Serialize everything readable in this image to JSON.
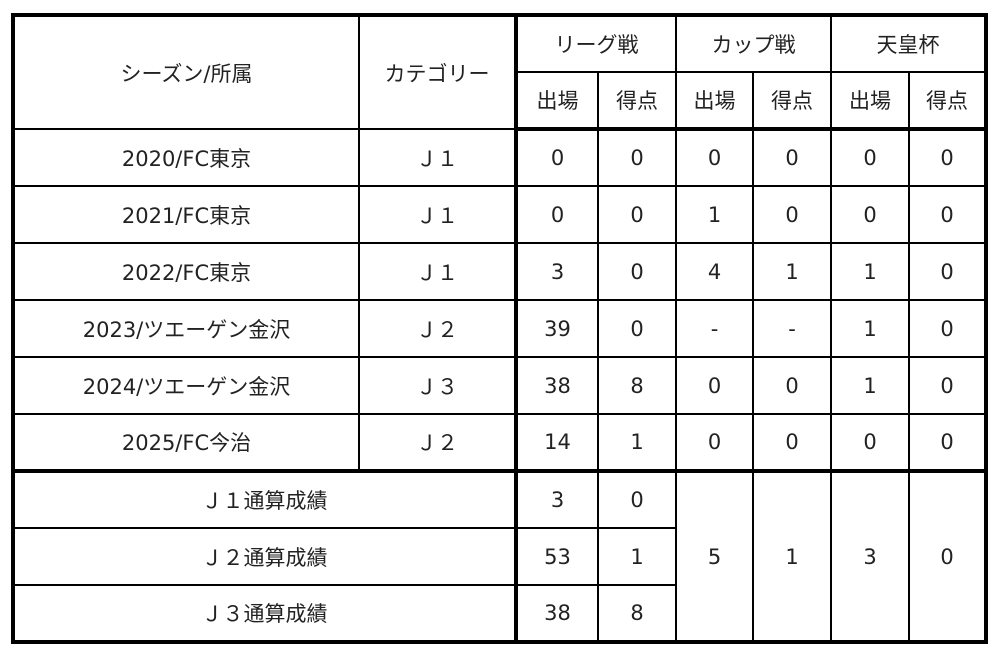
{
  "header": {
    "season": "シーズン/所属",
    "category": "カテゴリー",
    "groups": [
      "リーグ戦",
      "カップ戦",
      "天皇杯"
    ],
    "sub": [
      "出場",
      "得点",
      "出場",
      "得点",
      "出場",
      "得点"
    ]
  },
  "rows": [
    {
      "season": "2020/FC東京",
      "category": "Ｊ１",
      "v": [
        "0",
        "0",
        "0",
        "0",
        "0",
        "0"
      ]
    },
    {
      "season": "2021/FC東京",
      "category": "Ｊ１",
      "v": [
        "0",
        "0",
        "1",
        "0",
        "0",
        "0"
      ]
    },
    {
      "season": "2022/FC東京",
      "category": "Ｊ１",
      "v": [
        "3",
        "0",
        "4",
        "1",
        "1",
        "0"
      ]
    },
    {
      "season": "2023/ツエーゲン金沢",
      "category": "Ｊ２",
      "v": [
        "39",
        "0",
        "-",
        "-",
        "1",
        "0"
      ]
    },
    {
      "season": "2024/ツエーゲン金沢",
      "category": "Ｊ３",
      "v": [
        "38",
        "8",
        "0",
        "0",
        "1",
        "0"
      ]
    },
    {
      "season": "2025/FC今治",
      "category": "Ｊ２",
      "v": [
        "14",
        "1",
        "0",
        "0",
        "0",
        "0"
      ]
    }
  ],
  "totals": [
    {
      "label": "Ｊ１通算成績",
      "apps": "3",
      "goals": "0"
    },
    {
      "label": "Ｊ２通算成績",
      "apps": "53",
      "goals": "1"
    },
    {
      "label": "Ｊ３通算成績",
      "apps": "38",
      "goals": "8"
    }
  ],
  "totals_other": [
    "5",
    "1",
    "3",
    "0"
  ]
}
